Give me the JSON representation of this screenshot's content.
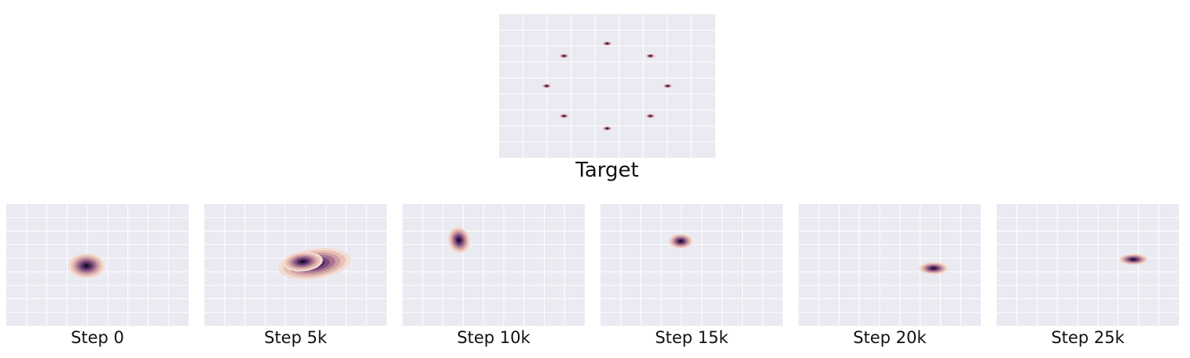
{
  "colors": {
    "background": "#eaeaf2",
    "grid": "#ffffff",
    "density_levels": [
      "#f3dcd3",
      "#e7c0b6",
      "#cf9ea3",
      "#a87592",
      "#7d4b7d",
      "#4e2a5c",
      "#1f1030"
    ]
  },
  "chart_data": [
    {
      "type": "heatmap",
      "kind": "density-contour",
      "title": "Target",
      "xlim": [
        -2.5,
        2.5
      ],
      "ylim": [
        -2.2,
        2.2
      ],
      "grid": true,
      "modes": [
        {
          "x": 0.0,
          "y": 1.3,
          "sx": 0.11,
          "sy": 0.07,
          "angle": 0
        },
        {
          "x": 1.0,
          "y": 0.92,
          "sx": 0.11,
          "sy": 0.07,
          "angle": 0
        },
        {
          "x": 1.4,
          "y": 0.0,
          "sx": 0.11,
          "sy": 0.07,
          "angle": 0
        },
        {
          "x": 1.0,
          "y": -0.92,
          "sx": 0.11,
          "sy": 0.07,
          "angle": 0
        },
        {
          "x": 0.0,
          "y": -1.3,
          "sx": 0.11,
          "sy": 0.07,
          "angle": 0
        },
        {
          "x": -1.0,
          "y": -0.92,
          "sx": 0.11,
          "sy": 0.07,
          "angle": 0
        },
        {
          "x": -1.4,
          "y": 0.0,
          "sx": 0.11,
          "sy": 0.07,
          "angle": 0
        },
        {
          "x": -1.0,
          "y": 0.92,
          "sx": 0.11,
          "sy": 0.07,
          "angle": 0
        }
      ]
    },
    {
      "type": "heatmap",
      "kind": "density-contour",
      "title": "Step 0",
      "xlim": [
        -2.5,
        2.5
      ],
      "ylim": [
        -2.2,
        2.2
      ],
      "grid": true,
      "modes": [
        {
          "x": -0.3,
          "y": -0.03,
          "sx": 0.5,
          "sy": 0.45,
          "angle": 0
        }
      ]
    },
    {
      "type": "heatmap",
      "kind": "density-contour",
      "title": "Step 5k",
      "xlim": [
        -2.5,
        2.5
      ],
      "ylim": [
        -2.2,
        2.2
      ],
      "grid": true,
      "modes": [
        {
          "x": 0.52,
          "y": 0.04,
          "sx": 1.0,
          "sy": 0.55,
          "angle": -8
        },
        {
          "x": 0.2,
          "y": 0.12,
          "sx": 0.55,
          "sy": 0.35,
          "angle": -5
        }
      ]
    },
    {
      "type": "heatmap",
      "kind": "density-contour",
      "title": "Step 10k",
      "xlim": [
        -2.5,
        2.5
      ],
      "ylim": [
        -2.2,
        2.2
      ],
      "grid": true,
      "modes": [
        {
          "x": -0.95,
          "y": 0.9,
          "sx": 0.3,
          "sy": 0.48,
          "angle": -15
        }
      ]
    },
    {
      "type": "heatmap",
      "kind": "density-contour",
      "title": "Step 15k",
      "xlim": [
        -2.5,
        2.5
      ],
      "ylim": [
        -2.2,
        2.2
      ],
      "grid": true,
      "modes": [
        {
          "x": -0.3,
          "y": 0.86,
          "sx": 0.33,
          "sy": 0.27,
          "angle": 0
        }
      ]
    },
    {
      "type": "heatmap",
      "kind": "density-contour",
      "title": "Step 20k",
      "xlim": [
        -2.5,
        2.5
      ],
      "ylim": [
        -2.2,
        2.2
      ],
      "grid": true,
      "modes": [
        {
          "x": 1.2,
          "y": -0.12,
          "sx": 0.4,
          "sy": 0.22,
          "angle": 0
        }
      ]
    },
    {
      "type": "heatmap",
      "kind": "density-contour",
      "title": "Step 25k",
      "xlim": [
        -2.5,
        2.5
      ],
      "ylim": [
        -2.2,
        2.2
      ],
      "grid": true,
      "modes": [
        {
          "x": 1.25,
          "y": 0.2,
          "sx": 0.4,
          "sy": 0.2,
          "angle": 0
        }
      ]
    }
  ]
}
